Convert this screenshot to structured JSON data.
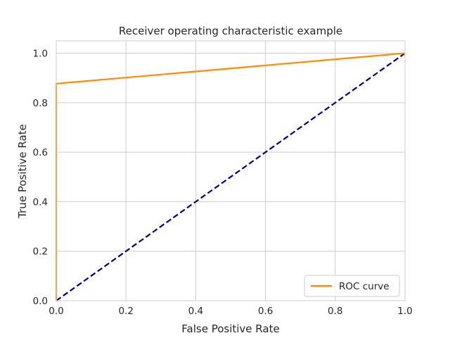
{
  "chart_data": {
    "type": "line",
    "title": "Receiver operating characteristic example",
    "xlabel": "False Positive Rate",
    "ylabel": "True Positive Rate",
    "xlim": [
      0.0,
      1.0
    ],
    "ylim": [
      0.0,
      1.05
    ],
    "xticks": [
      0.0,
      0.2,
      0.4,
      0.6,
      0.8,
      1.0
    ],
    "yticks": [
      0.0,
      0.2,
      0.4,
      0.6,
      0.8,
      1.0
    ],
    "xtick_labels": [
      "0.0",
      "0.2",
      "0.4",
      "0.6",
      "0.8",
      "1.0"
    ],
    "ytick_labels": [
      "0.0",
      "0.2",
      "0.4",
      "0.6",
      "0.8",
      "1.0"
    ],
    "grid": true,
    "legend_position": "lower-right",
    "series": [
      {
        "name": "ROC curve",
        "color": "#ff8c00",
        "line_style": "solid",
        "x": [
          0.0,
          0.0,
          1.0
        ],
        "y": [
          0.0,
          0.877,
          1.0
        ]
      },
      {
        "color": "#000080",
        "line_style": "dashed",
        "x": [
          0.0,
          1.0
        ],
        "y": [
          0.0,
          1.0
        ]
      }
    ]
  }
}
